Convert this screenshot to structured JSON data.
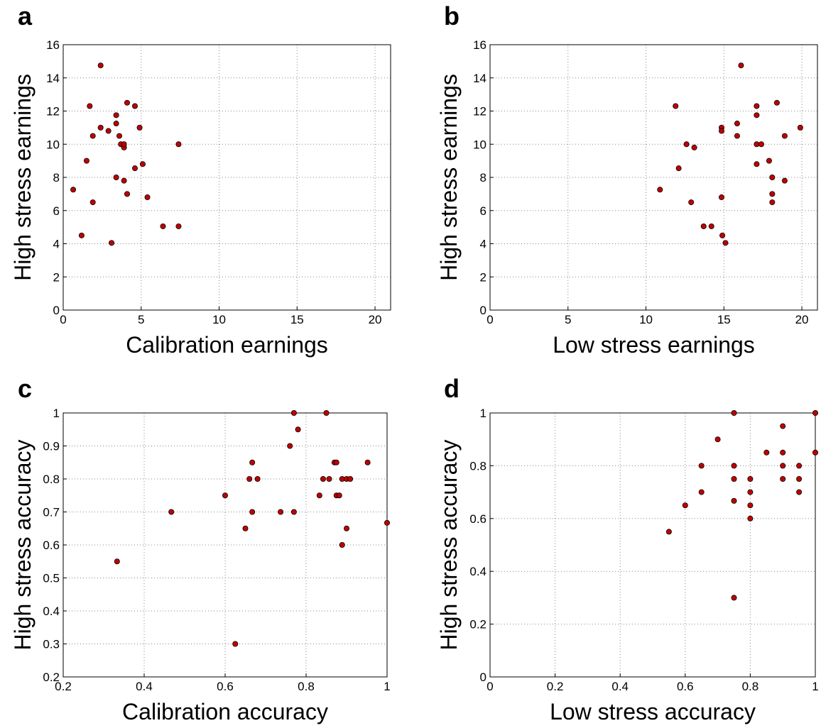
{
  "chart_data": [
    {
      "type": "scatter",
      "panel": "a",
      "xlabel": "Calibration earnings",
      "ylabel": "High stress earnings",
      "xlim": [
        0,
        21
      ],
      "xticks": [
        0,
        5,
        10,
        15,
        20
      ],
      "ylim": [
        0,
        16
      ],
      "yticks": [
        0,
        2,
        4,
        6,
        8,
        10,
        12,
        14,
        16
      ],
      "grid": true,
      "color": "#c00000",
      "x": [
        0.64,
        1.18,
        1.5,
        1.7,
        1.9,
        1.9,
        2.4,
        2.4,
        2.9,
        3.1,
        3.4,
        3.4,
        3.4,
        3.6,
        3.7,
        3.9,
        3.9,
        3.9,
        4.1,
        4.1,
        4.6,
        4.6,
        4.9,
        5.1,
        5.4,
        6.4,
        7.4,
        7.4
      ],
      "values": [
        7.26,
        4.5,
        9.0,
        12.3,
        10.5,
        6.5,
        14.75,
        11.0,
        10.8,
        4.05,
        11.75,
        11.25,
        8.0,
        10.5,
        10.0,
        9.8,
        10.0,
        7.8,
        12.5,
        7.0,
        12.3,
        8.55,
        11.0,
        8.8,
        6.8,
        5.05,
        10.0,
        5.05
      ]
    },
    {
      "type": "scatter",
      "panel": "b",
      "xlabel": "Low stress earnings",
      "ylabel": "High stress earnings",
      "xlim": [
        0,
        21
      ],
      "xticks": [
        0,
        5,
        10,
        15,
        20
      ],
      "ylim": [
        0,
        16
      ],
      "yticks": [
        0,
        2,
        4,
        6,
        8,
        10,
        12,
        14,
        16
      ],
      "grid": true,
      "color": "#c00000",
      "x": [
        10.9,
        11.9,
        12.1,
        12.6,
        12.9,
        13.1,
        13.7,
        14.2,
        14.85,
        14.85,
        14.85,
        14.9,
        15.1,
        15.85,
        15.85,
        16.1,
        17.1,
        17.1,
        17.1,
        17.1,
        17.4,
        17.9,
        18.1,
        18.1,
        18.1,
        18.4,
        18.9,
        18.9,
        19.9
      ],
      "values": [
        7.26,
        12.3,
        8.55,
        10.0,
        6.5,
        9.8,
        5.05,
        5.05,
        11.0,
        10.8,
        6.8,
        4.5,
        4.05,
        11.25,
        10.5,
        14.75,
        12.3,
        11.75,
        10.0,
        8.8,
        10.0,
        9.0,
        8.0,
        7.0,
        6.5,
        12.5,
        10.5,
        7.8,
        11.0
      ]
    },
    {
      "type": "scatter",
      "panel": "c",
      "xlabel": "Calibration accuracy",
      "ylabel": "High stress accuracy",
      "xlim": [
        0.2,
        1
      ],
      "xticks": [
        0.2,
        0.4,
        0.6,
        0.8,
        1
      ],
      "ylim": [
        0.2,
        1
      ],
      "yticks": [
        0.2,
        0.3,
        0.4,
        0.5,
        0.6,
        0.7,
        0.8,
        0.9,
        1
      ],
      "grid": true,
      "color": "#c00000",
      "x": [
        0.333,
        0.467,
        0.6,
        0.625,
        0.65,
        0.66,
        0.667,
        0.667,
        0.68,
        0.737,
        0.76,
        0.77,
        0.77,
        0.78,
        0.833,
        0.842,
        0.85,
        0.857,
        0.87,
        0.875,
        0.875,
        0.882,
        0.889,
        0.889,
        0.9,
        0.9,
        0.909,
        0.952,
        1.0
      ],
      "values": [
        0.55,
        0.7,
        0.75,
        0.3,
        0.65,
        0.8,
        0.85,
        0.7,
        0.8,
        0.7,
        0.9,
        1.0,
        0.7,
        0.95,
        0.75,
        0.8,
        1.0,
        0.8,
        0.85,
        0.85,
        0.75,
        0.75,
        0.8,
        0.6,
        0.8,
        0.65,
        0.8,
        0.85,
        0.667
      ]
    },
    {
      "type": "scatter",
      "panel": "d",
      "xlabel": "Low stress accuracy",
      "ylabel": "High stress accuracy",
      "xlim": [
        0,
        1
      ],
      "xticks": [
        0,
        0.2,
        0.4,
        0.6,
        0.8,
        1
      ],
      "ylim": [
        0,
        1
      ],
      "yticks": [
        0,
        0.2,
        0.4,
        0.6,
        0.8,
        1
      ],
      "grid": true,
      "color": "#c00000",
      "x": [
        0.55,
        0.6,
        0.65,
        0.65,
        0.7,
        0.75,
        0.75,
        0.75,
        0.75,
        0.75,
        0.8,
        0.8,
        0.8,
        0.8,
        0.85,
        0.9,
        0.9,
        0.9,
        0.9,
        0.95,
        0.95,
        0.95,
        1.0,
        1.0
      ],
      "values": [
        0.55,
        0.65,
        0.8,
        0.7,
        0.9,
        1.0,
        0.8,
        0.75,
        0.667,
        0.3,
        0.75,
        0.7,
        0.65,
        0.6,
        0.85,
        0.95,
        0.85,
        0.8,
        0.75,
        0.8,
        0.75,
        0.7,
        1.0,
        0.85
      ]
    }
  ]
}
